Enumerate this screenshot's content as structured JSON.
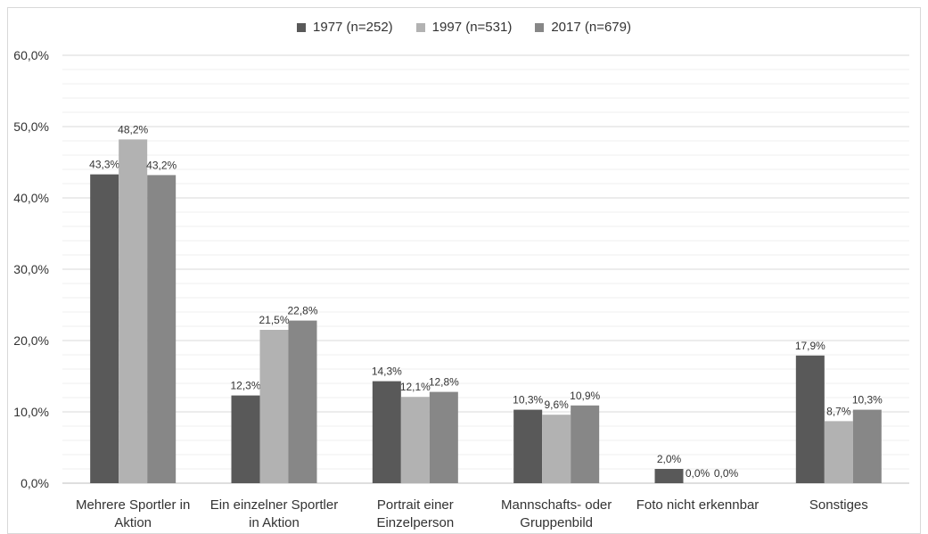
{
  "chart_data": {
    "type": "bar",
    "title": "",
    "xlabel": "",
    "ylabel": "",
    "ylim": [
      0,
      60
    ],
    "y_ticks": [
      "0,0%",
      "10,0%",
      "20,0%",
      "30,0%",
      "40,0%",
      "50,0%",
      "60,0%"
    ],
    "grid": true,
    "legend_position": "top",
    "categories": [
      [
        "Mehrere Sportler in",
        "Aktion"
      ],
      [
        "Ein einzelner Sportler",
        "in Aktion"
      ],
      [
        "Portrait einer",
        "Einzelperson"
      ],
      [
        "Mannschafts- oder",
        "Gruppenbild"
      ],
      [
        "Foto nicht erkennbar"
      ],
      [
        "Sonstiges"
      ]
    ],
    "series": [
      {
        "name": "1977 (n=252)",
        "color": "#595959",
        "values": [
          43.3,
          12.3,
          14.3,
          10.3,
          2.0,
          17.9
        ],
        "labels": [
          "43,3%",
          "12,3%",
          "14,3%",
          "10,3%",
          "2,0%",
          "17,9%"
        ]
      },
      {
        "name": "1997 (n=531)",
        "color": "#b2b2b2",
        "values": [
          48.2,
          21.5,
          12.1,
          9.6,
          0.0,
          8.7
        ],
        "labels": [
          "48,2%",
          "21,5%",
          "12,1%",
          "9,6%",
          "0,0%",
          "8,7%"
        ]
      },
      {
        "name": "2017 (n=679)",
        "color": "#878787",
        "values": [
          43.2,
          22.8,
          12.8,
          10.9,
          0.0,
          10.3
        ],
        "labels": [
          "43,2%",
          "22,8%",
          "12,8%",
          "10,9%",
          "0,0%",
          "10,3%"
        ]
      }
    ]
  }
}
